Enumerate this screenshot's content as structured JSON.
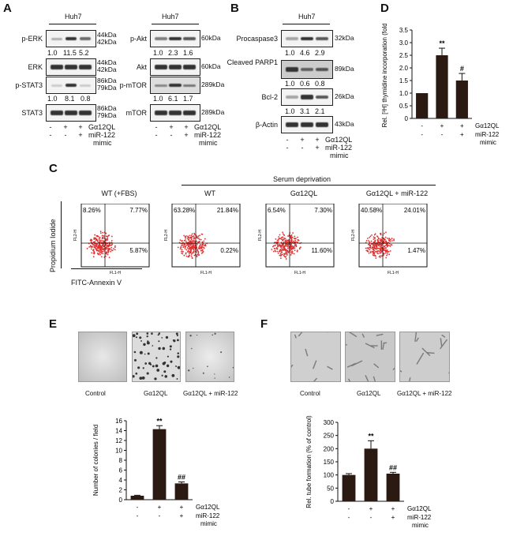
{
  "panels": {
    "A": "A",
    "B": "B",
    "C": "C",
    "D": "D",
    "E": "E",
    "F": "F"
  },
  "panelA": {
    "cell_line_1": "Huh7",
    "cell_line_2": "Huh7",
    "rows_left": [
      "p-ERK",
      "ERK",
      "p-STAT3",
      "STAT3"
    ],
    "rows_right": [
      "p-Akt",
      "Akt",
      "p-mTOR",
      "mTOR"
    ],
    "mw_left": {
      "perk": [
        "44kDa",
        "42kDa"
      ],
      "erk": [
        "44kDa",
        "42kDa"
      ],
      "pstat3": [
        "86kDa",
        "79kDa"
      ],
      "stat3": [
        "86kDa",
        "79kDa"
      ]
    },
    "mw_right": {
      "pakt": "60kDa",
      "akt": "60kDa",
      "pmtor": "289kDa",
      "mtor": "289kDa"
    },
    "quant_perk": [
      "1.0",
      "11.5",
      "5.2"
    ],
    "quant_pstat3": [
      "1.0",
      "8.1",
      "0.8"
    ],
    "quant_pakt": [
      "1.0",
      "2.3",
      "1.6"
    ],
    "quant_pmtor": [
      "1.0",
      "6.1",
      "1.7"
    ]
  },
  "panelB": {
    "cell_line": "Huh7",
    "rows": [
      "Procaspase3",
      "Cleaved PARP1",
      "Bcl-2",
      "β-Actin"
    ],
    "mw": [
      "32kDa",
      "89kDa",
      "26kDa",
      "43kDa"
    ],
    "quant_procasp": [
      "1.0",
      "4.6",
      "2.9"
    ],
    "quant_parp": [
      "1.0",
      "0.6",
      "0.8"
    ],
    "quant_bcl2": [
      "1.0",
      "3.1",
      "2.1"
    ]
  },
  "treatment": {
    "row1_signs": [
      "-",
      "+",
      "+"
    ],
    "row2_signs": [
      "-",
      "-",
      "+"
    ],
    "g_label": "Gα12QL",
    "mir_label": "miR-122",
    "mimic_label": "mimic"
  },
  "panelC": {
    "serum_label": "Serum deprivation",
    "ylabel": "Propidium Iodide",
    "xlabel": "FITC-Annexin V",
    "axis_x": "FL1-H",
    "axis_y": "FL2-H",
    "plots": [
      {
        "title": "WT (+FBS)",
        "ul": "8.26%",
        "ur": "7.77%",
        "lr": "5.87%"
      },
      {
        "title": "WT",
        "ul": "63.28%",
        "ur": "21.84%",
        "lr": "0.22%"
      },
      {
        "title": "Gα12QL",
        "ul": "6.54%",
        "ur": "7.30%",
        "lr": "11.60%"
      },
      {
        "title": "Gα12QL + miR-122",
        "ul": "40.58%",
        "ur": "24.01%",
        "lr": "1.47%"
      }
    ]
  },
  "panelE": {
    "images": [
      "Control",
      "Gα12QL",
      "Gα12QL + miR-122"
    ]
  },
  "panelF": {
    "images": [
      "Control",
      "Gα12QL",
      "Gα12QL + miR-122"
    ]
  },
  "chart_data": [
    {
      "type": "bar",
      "panel": "D",
      "ylabel": "Rel. [³H] thymidine incorporation (fold)",
      "ylim": [
        0,
        3.5
      ],
      "yticks": [
        "0",
        "0.5",
        "1.0",
        "1.5",
        "2.0",
        "2.5",
        "3.0",
        "3.5"
      ],
      "values": [
        1.0,
        2.5,
        1.5
      ],
      "errors": [
        0,
        0.28,
        0.28
      ],
      "annotations": [
        "",
        "**",
        "#"
      ]
    },
    {
      "type": "bar",
      "panel": "E",
      "ylabel": "Number of colonies / field",
      "ylim": [
        0,
        16
      ],
      "yticks": [
        "0",
        "2",
        "4",
        "6",
        "8",
        "10",
        "12",
        "14",
        "16"
      ],
      "values": [
        0.8,
        14.3,
        3.3
      ],
      "errors": [
        0.1,
        0.7,
        0.3
      ],
      "annotations": [
        "",
        "**",
        "##"
      ]
    },
    {
      "type": "bar",
      "panel": "F",
      "ylabel": "Rel. tube formation (% of control)",
      "ylim": [
        0,
        300
      ],
      "yticks": [
        "0",
        "50",
        "100",
        "150",
        "200",
        "250",
        "300"
      ],
      "values": [
        100,
        200,
        105
      ],
      "errors": [
        5,
        30,
        5
      ],
      "annotations": [
        "",
        "**",
        "##"
      ]
    }
  ]
}
